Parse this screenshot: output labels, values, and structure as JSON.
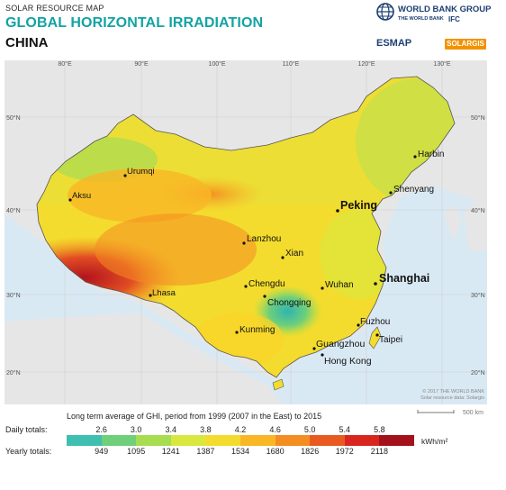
{
  "header": {
    "kicker": "SOLAR RESOURCE MAP",
    "title": "GLOBAL HORIZONTAL IRRADIATION",
    "subtitle": "CHINA"
  },
  "logos": {
    "world_bank": "WORLD BANK GROUP",
    "wb_sub": "THE WORLD BANK",
    "ifc": "IFC",
    "esmap": "ESMAP",
    "solargis": "SOLARGIS"
  },
  "map": {
    "longitude_labels": [
      "80°E",
      "90°E",
      "100°E",
      "110°E",
      "120°E",
      "130°E"
    ],
    "latitude_labels": [
      "50°N",
      "40°N",
      "30°N",
      "20°N"
    ],
    "cities": [
      {
        "name": "Harbin",
        "major": false
      },
      {
        "name": "Urumqi",
        "major": false
      },
      {
        "name": "Aksu",
        "major": false
      },
      {
        "name": "Shenyang",
        "major": false
      },
      {
        "name": "Peking",
        "major": true
      },
      {
        "name": "Lanzhou",
        "major": false
      },
      {
        "name": "Xian",
        "major": false
      },
      {
        "name": "Chengdu",
        "major": false
      },
      {
        "name": "Chongqing",
        "major": false
      },
      {
        "name": "Wuhan",
        "major": false
      },
      {
        "name": "Shanghai",
        "major": true
      },
      {
        "name": "Lhasa",
        "major": false
      },
      {
        "name": "Kunming",
        "major": false
      },
      {
        "name": "Fuzhou",
        "major": false
      },
      {
        "name": "Taipei",
        "major": false
      },
      {
        "name": "Guangzhou",
        "major": false
      },
      {
        "name": "Hong Kong",
        "major": false
      }
    ],
    "copyright": "© 2017 THE WORLD BANK",
    "source": "Solar resource data: Solargis",
    "scale_label": "500 km"
  },
  "legend": {
    "caption": "Long term average of GHI, period from 1999 (2007 in the East) to 2015",
    "daily_label": "Daily totals:",
    "yearly_label": "Yearly totals:",
    "daily_ticks": [
      "2.6",
      "3.0",
      "3.4",
      "3.8",
      "4.2",
      "4.6",
      "5.0",
      "5.4",
      "5.8"
    ],
    "yearly_ticks": [
      "949",
      "1095",
      "1241",
      "1387",
      "1534",
      "1680",
      "1826",
      "1972",
      "2118"
    ],
    "unit": "kWh/m²",
    "colors": [
      "#3fbfb0",
      "#6fcf7a",
      "#a8dd52",
      "#d9e83f",
      "#f3dc2d",
      "#f9b726",
      "#f48d22",
      "#e95a21",
      "#d8261f",
      "#a3121b"
    ]
  },
  "palette": {
    "accent": "#13a3a4",
    "sea": "#d9e9f4",
    "land_other": "#e9e9e9"
  }
}
